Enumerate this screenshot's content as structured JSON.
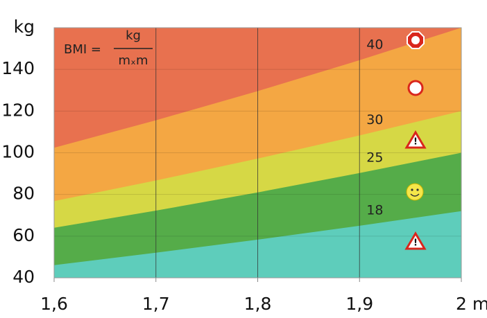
{
  "chart_data": {
    "type": "area_bands",
    "formula": {
      "lhs": "BMI =",
      "numerator": "kg",
      "denominator": "mₓm"
    },
    "x": [
      1.6,
      1.7,
      1.8,
      1.9,
      2.0
    ],
    "series": [
      {
        "name": "18",
        "color": "#5fcfc6",
        "values": [
          46.08,
          52.02,
          58.32,
          64.98,
          72
        ]
      },
      {
        "name": "25",
        "color": "#4aa84a",
        "values": [
          64,
          72.25,
          81,
          90.25,
          100
        ]
      },
      {
        "name": "30",
        "color": "#d2dc45",
        "values": [
          76.8,
          86.7,
          97.2,
          108.3,
          120
        ]
      },
      {
        "name": "40",
        "color": "#f4ab42",
        "values": [
          102.4,
          115.6,
          129.6,
          144.4,
          160
        ]
      }
    ],
    "above_color": "#e8714f",
    "xlim": [
      1.6,
      2.0
    ],
    "xticks": [
      {
        "value": 1.6,
        "label": "1,6"
      },
      {
        "value": 1.7,
        "label": "1,7"
      },
      {
        "value": 1.8,
        "label": "1,8"
      },
      {
        "value": 1.9,
        "label": "1,9"
      },
      {
        "value": 2.0,
        "label": "2 m"
      }
    ],
    "ylim": [
      40,
      160
    ],
    "yticks": [
      40,
      60,
      80,
      100,
      120,
      140,
      {
        "value": 160,
        "label": "kg"
      }
    ],
    "grid": true
  }
}
